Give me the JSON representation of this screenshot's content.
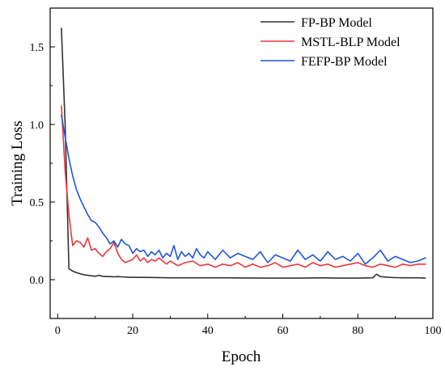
{
  "chart_data": {
    "type": "line",
    "xlabel": "Epoch",
    "ylabel": "Training Loss",
    "xlim": [
      -2,
      100
    ],
    "ylim": [
      -0.25,
      1.75
    ],
    "xticks": [
      0,
      20,
      40,
      60,
      80,
      100
    ],
    "yticks": [
      0.0,
      0.5,
      1.0,
      1.5
    ],
    "xtick_labels": [
      "0",
      "20",
      "40",
      "60",
      "80",
      "100"
    ],
    "ytick_labels": [
      "0.0",
      "0.5",
      "1.0",
      "1.5"
    ],
    "legend_position": "top-right",
    "grid": false,
    "series": [
      {
        "name": "FP-BP Model",
        "color": "#333333",
        "x": [
          1,
          2,
          3,
          4,
          5,
          6,
          7,
          8,
          9,
          10,
          11,
          12,
          13,
          14,
          15,
          16,
          17,
          18,
          19,
          20,
          25,
          30,
          35,
          40,
          45,
          50,
          55,
          60,
          65,
          70,
          75,
          80,
          84,
          85,
          86,
          88,
          90,
          92,
          94,
          96,
          98
        ],
        "y": [
          1.62,
          1.0,
          0.07,
          0.055,
          0.045,
          0.038,
          0.032,
          0.028,
          0.025,
          0.022,
          0.028,
          0.022,
          0.02,
          0.02,
          0.018,
          0.02,
          0.018,
          0.017,
          0.015,
          0.015,
          0.014,
          0.012,
          0.012,
          0.012,
          0.012,
          0.011,
          0.01,
          0.01,
          0.01,
          0.012,
          0.01,
          0.01,
          0.012,
          0.035,
          0.02,
          0.015,
          0.013,
          0.012,
          0.012,
          0.012,
          0.01
        ]
      },
      {
        "name": "MSTL-BLP Model",
        "color": "#e8383d",
        "x": [
          1,
          2,
          3,
          4,
          5,
          6,
          7,
          8,
          9,
          10,
          11,
          12,
          13,
          14,
          15,
          16,
          17,
          18,
          19,
          20,
          21,
          22,
          23,
          24,
          25,
          26,
          27,
          28,
          29,
          30,
          32,
          34,
          36,
          38,
          40,
          42,
          44,
          46,
          48,
          50,
          52,
          54,
          56,
          58,
          60,
          62,
          64,
          66,
          68,
          70,
          72,
          74,
          76,
          78,
          80,
          82,
          84,
          86,
          88,
          90,
          92,
          94,
          96,
          98
        ],
        "y": [
          1.12,
          0.7,
          0.42,
          0.22,
          0.25,
          0.24,
          0.21,
          0.27,
          0.19,
          0.2,
          0.17,
          0.15,
          0.18,
          0.2,
          0.24,
          0.17,
          0.13,
          0.11,
          0.12,
          0.13,
          0.16,
          0.12,
          0.14,
          0.11,
          0.13,
          0.12,
          0.14,
          0.12,
          0.1,
          0.12,
          0.09,
          0.11,
          0.12,
          0.09,
          0.1,
          0.08,
          0.1,
          0.09,
          0.11,
          0.08,
          0.1,
          0.08,
          0.09,
          0.11,
          0.08,
          0.09,
          0.1,
          0.08,
          0.11,
          0.09,
          0.1,
          0.08,
          0.09,
          0.1,
          0.11,
          0.09,
          0.08,
          0.1,
          0.09,
          0.08,
          0.1,
          0.09,
          0.1,
          0.1
        ]
      },
      {
        "name": "FEFP-BP Model",
        "color": "#1f56d4",
        "x": [
          1,
          2,
          3,
          4,
          5,
          6,
          7,
          8,
          9,
          10,
          11,
          12,
          13,
          14,
          15,
          16,
          17,
          18,
          19,
          20,
          21,
          22,
          23,
          24,
          25,
          26,
          27,
          28,
          29,
          30,
          31,
          32,
          33,
          34,
          35,
          36,
          37,
          38,
          39,
          40,
          42,
          44,
          46,
          48,
          50,
          52,
          54,
          56,
          58,
          60,
          62,
          64,
          66,
          68,
          70,
          72,
          74,
          76,
          78,
          80,
          82,
          84,
          86,
          88,
          90,
          92,
          94,
          96,
          98
        ],
        "y": [
          1.06,
          0.92,
          0.78,
          0.67,
          0.58,
          0.52,
          0.47,
          0.42,
          0.38,
          0.37,
          0.34,
          0.3,
          0.27,
          0.23,
          0.25,
          0.21,
          0.26,
          0.23,
          0.22,
          0.17,
          0.2,
          0.18,
          0.19,
          0.15,
          0.18,
          0.16,
          0.19,
          0.14,
          0.17,
          0.15,
          0.22,
          0.13,
          0.18,
          0.15,
          0.17,
          0.14,
          0.2,
          0.16,
          0.14,
          0.18,
          0.13,
          0.19,
          0.14,
          0.17,
          0.15,
          0.13,
          0.18,
          0.11,
          0.16,
          0.14,
          0.12,
          0.19,
          0.13,
          0.16,
          0.12,
          0.18,
          0.13,
          0.15,
          0.12,
          0.17,
          0.1,
          0.14,
          0.19,
          0.12,
          0.15,
          0.13,
          0.11,
          0.12,
          0.14
        ]
      }
    ]
  }
}
